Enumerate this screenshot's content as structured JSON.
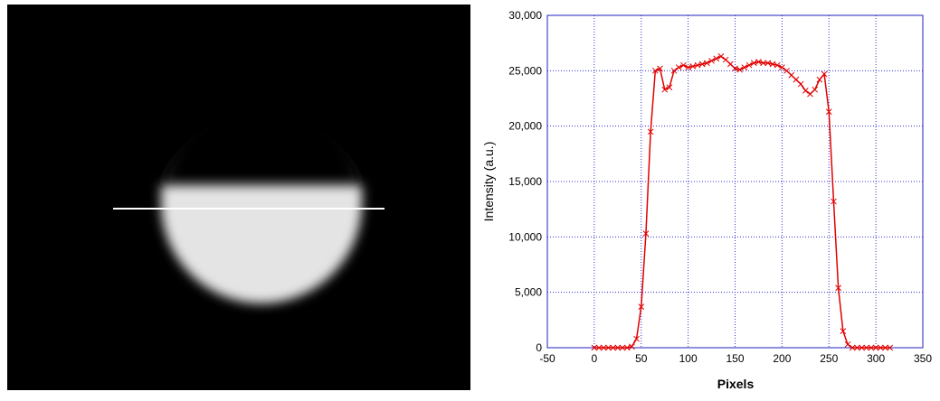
{
  "chart_data": {
    "type": "line",
    "xlabel": "Pixels",
    "ylabel": "Intensity (a.u.)",
    "x": [
      0,
      5,
      10,
      15,
      20,
      25,
      30,
      35,
      40,
      45,
      50,
      55,
      60,
      65,
      70,
      75,
      80,
      85,
      90,
      95,
      100,
      105,
      110,
      115,
      120,
      125,
      130,
      135,
      140,
      145,
      150,
      155,
      160,
      165,
      170,
      175,
      180,
      185,
      190,
      195,
      200,
      205,
      210,
      215,
      220,
      225,
      230,
      235,
      240,
      245,
      250,
      255,
      260,
      265,
      270,
      275,
      280,
      285,
      290,
      295,
      300,
      305,
      310,
      315
    ],
    "series": [
      {
        "color": "#e00000",
        "marker": "x",
        "values": [
          0,
          0,
          0,
          0,
          0,
          0,
          0,
          0,
          100,
          800,
          3700,
          10300,
          19500,
          25000,
          25200,
          23300,
          23500,
          25000,
          25300,
          25500,
          25300,
          25400,
          25500,
          25600,
          25700,
          25900,
          26100,
          26300,
          26000,
          25600,
          25200,
          25100,
          25300,
          25500,
          25700,
          25800,
          25700,
          25700,
          25600,
          25500,
          25300,
          25000,
          24600,
          24200,
          23800,
          23200,
          22900,
          23300,
          24200,
          24700,
          21300,
          13200,
          5400,
          1500,
          300,
          0,
          0,
          0,
          0,
          0,
          0,
          0,
          0,
          0
        ]
      }
    ],
    "xlim": [
      -50,
      350
    ],
    "xticks": [
      -50,
      0,
      50,
      100,
      150,
      200,
      250,
      300,
      350
    ],
    "ylim": [
      0,
      30000
    ],
    "yticks": [
      0,
      {
        "value": 5000,
        "label": "5,000"
      },
      {
        "value": 10000,
        "label": "10,000"
      },
      {
        "value": 15000,
        "label": "15,000"
      },
      {
        "value": 20000,
        "label": "20,000"
      },
      {
        "value": 25000,
        "label": "25,000"
      },
      {
        "value": 30000,
        "label": "30,000"
      }
    ],
    "grid": true
  }
}
